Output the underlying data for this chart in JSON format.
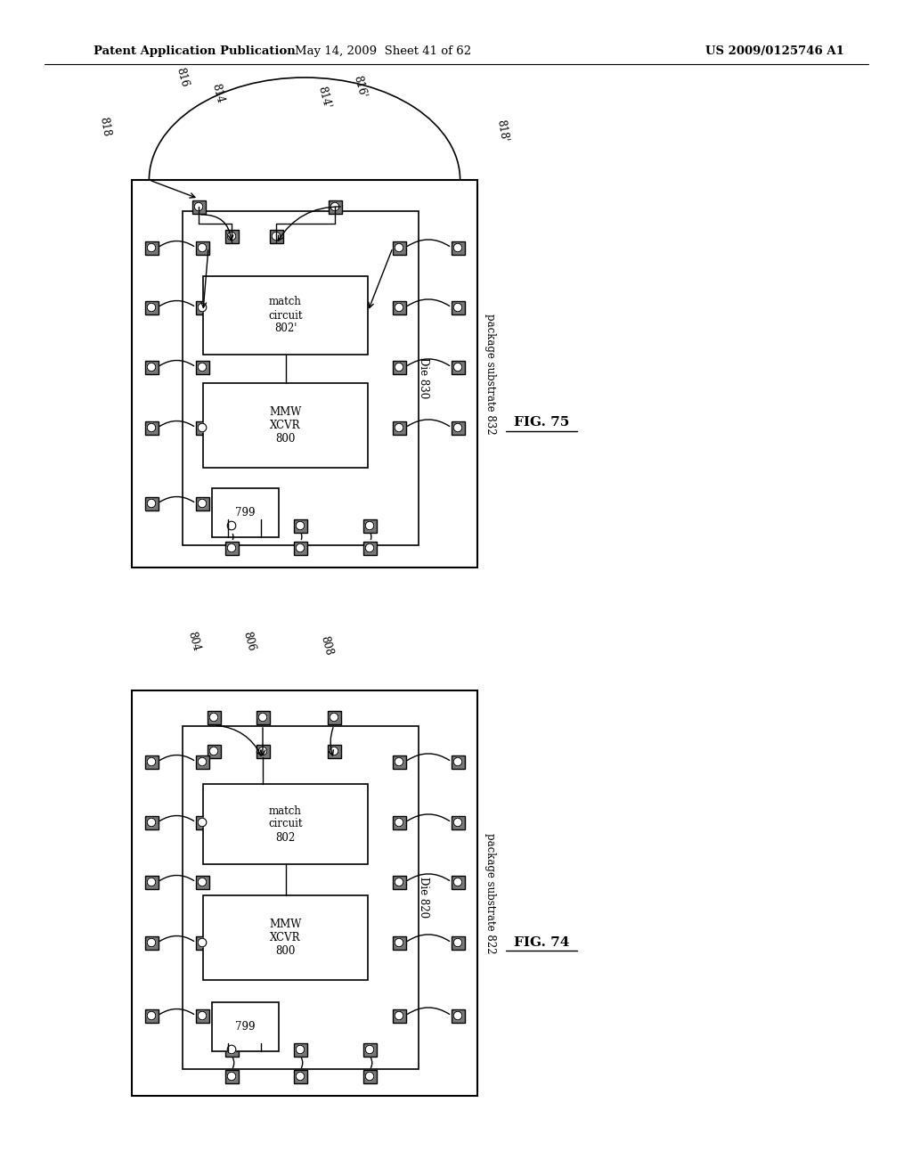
{
  "header_left": "Patent Application Publication",
  "header_mid": "May 14, 2009  Sheet 41 of 62",
  "header_right": "US 2009/0125746 A1",
  "fig75_label": "FIG. 75",
  "fig74_label": "FIG. 74"
}
